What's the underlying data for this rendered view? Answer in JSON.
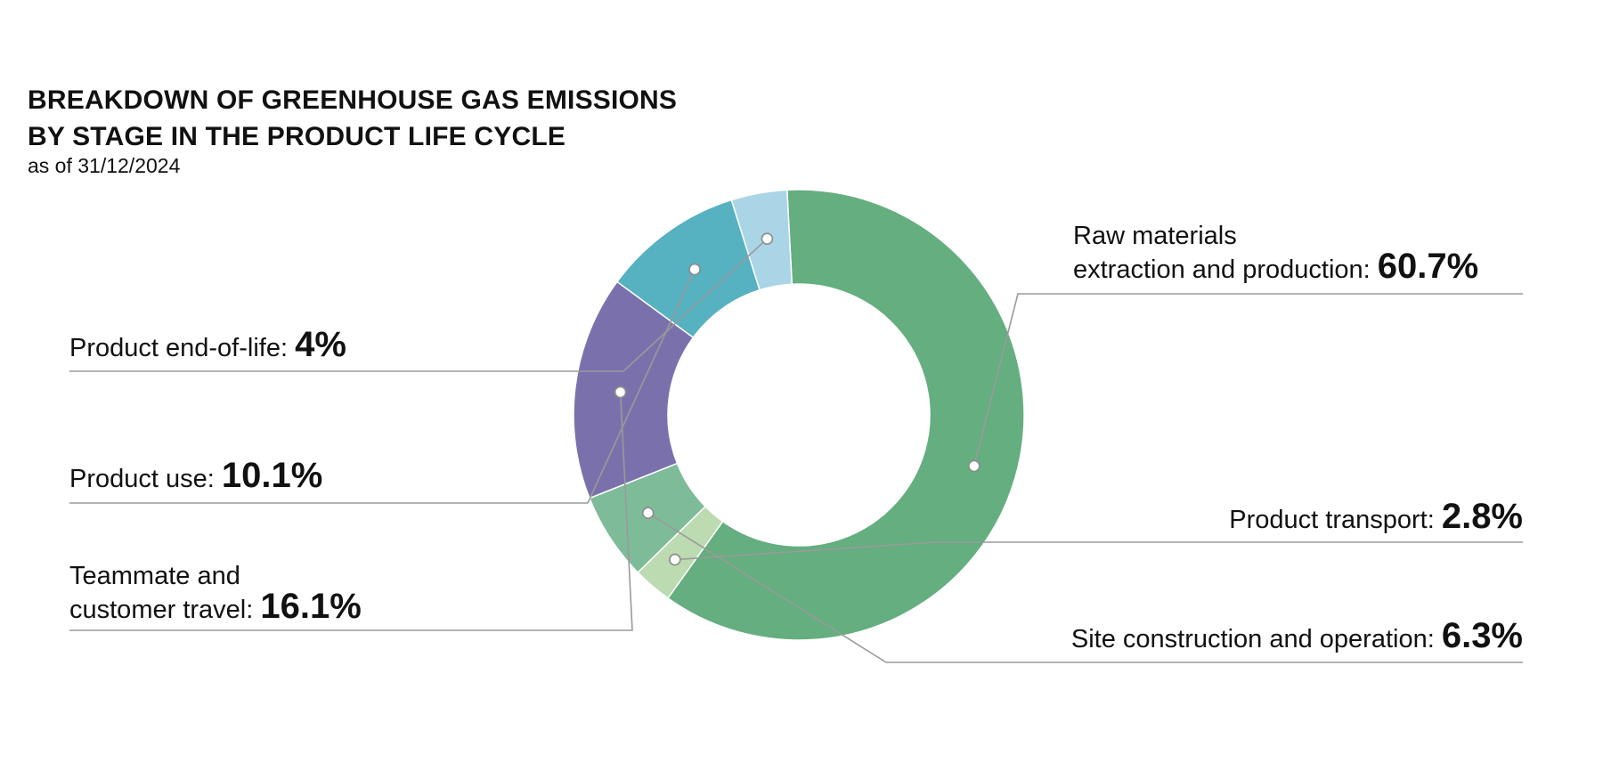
{
  "chart_data": {
    "type": "pie",
    "variant": "donut",
    "title_line1": "BREAKDOWN OF GREENHOUSE GAS EMISSIONS",
    "title_line2": "BY STAGE IN THE PRODUCT LIFE CYCLE",
    "subtitle": "as of 31/12/2024",
    "unit": "%",
    "slices": [
      {
        "id": "raw",
        "label_line1": "Raw materials",
        "label_line2": "extraction and production:",
        "value": 60.7,
        "value_text": "60.7%",
        "color": "#64ae7f"
      },
      {
        "id": "transport",
        "label_line1": "",
        "label_line2": "Product transport:",
        "value": 2.8,
        "value_text": "2.8%",
        "color": "#bcdbb0"
      },
      {
        "id": "site",
        "label_line1": "",
        "label_line2": "Site construction and operation:",
        "value": 6.3,
        "value_text": "6.3%",
        "color": "#7ebb98"
      },
      {
        "id": "travel",
        "label_line1": "Teammate and",
        "label_line2": "customer travel:",
        "value": 16.1,
        "value_text": "16.1%",
        "color": "#7a71ac"
      },
      {
        "id": "use",
        "label_line1": "",
        "label_line2": "Product use:",
        "value": 10.1,
        "value_text": "10.1%",
        "color": "#56b1c1"
      },
      {
        "id": "eol",
        "label_line1": "",
        "label_line2": "Product end-of-life:",
        "value": 4,
        "value_text": "4%",
        "color": "#a9d5e6"
      }
    ]
  }
}
